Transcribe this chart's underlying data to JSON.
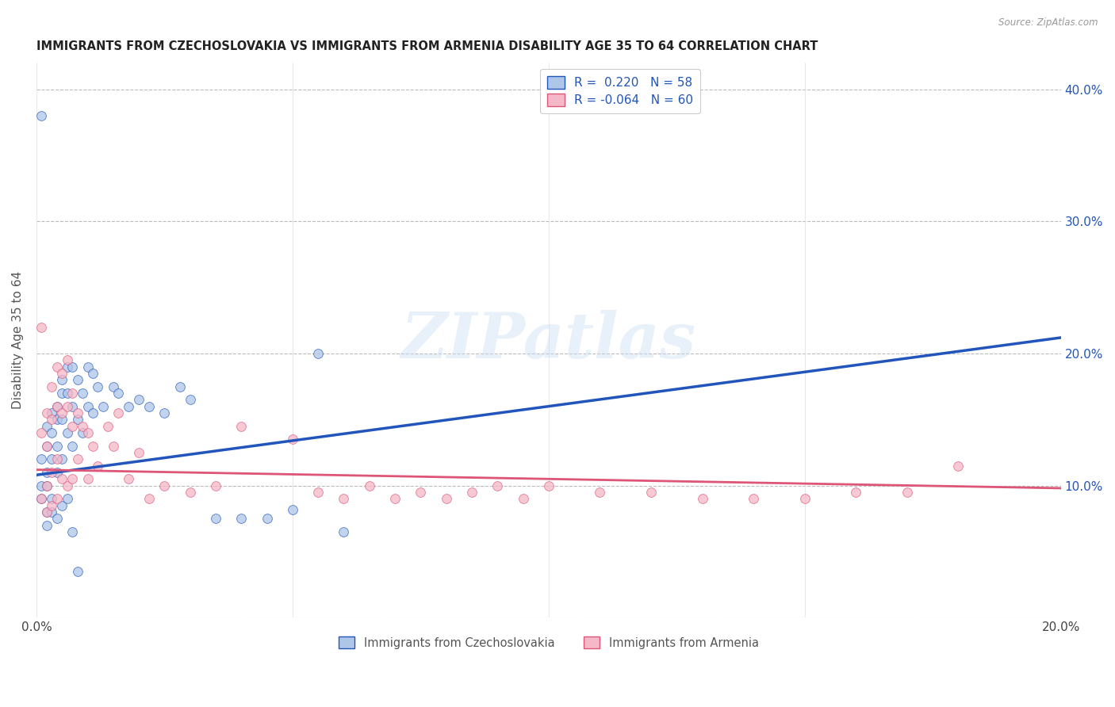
{
  "title": "IMMIGRANTS FROM CZECHOSLOVAKIA VS IMMIGRANTS FROM ARMENIA DISABILITY AGE 35 TO 64 CORRELATION CHART",
  "source": "Source: ZipAtlas.com",
  "ylabel": "Disability Age 35 to 64",
  "xlim": [
    0.0,
    0.2
  ],
  "ylim": [
    0.0,
    0.42
  ],
  "x_tick_positions": [
    0.0,
    0.05,
    0.1,
    0.15,
    0.2
  ],
  "x_tick_labels": [
    "0.0%",
    "",
    "",
    "",
    "20.0%"
  ],
  "y_tick_positions": [
    0.0,
    0.1,
    0.2,
    0.3,
    0.4
  ],
  "y_tick_labels_right": [
    "",
    "10.0%",
    "20.0%",
    "30.0%",
    "40.0%"
  ],
  "watermark": "ZIPatlas",
  "legend_line1": "R =  0.220   N = 58",
  "legend_line2": "R = -0.064   N = 60",
  "color_czech": "#aec6e8",
  "color_armenia": "#f4b8c8",
  "line_color_czech": "#2255bb",
  "line_color_armenia": "#dd5577",
  "marker_size": 72,
  "czech_intercept": 0.108,
  "czech_slope": 0.52,
  "armenia_intercept": 0.112,
  "armenia_slope": -0.07,
  "czech_x": [
    0.001,
    0.001,
    0.001,
    0.002,
    0.002,
    0.002,
    0.002,
    0.002,
    0.003,
    0.003,
    0.003,
    0.003,
    0.004,
    0.004,
    0.004,
    0.004,
    0.005,
    0.005,
    0.005,
    0.005,
    0.006,
    0.006,
    0.006,
    0.007,
    0.007,
    0.007,
    0.008,
    0.008,
    0.009,
    0.009,
    0.01,
    0.01,
    0.011,
    0.011,
    0.012,
    0.013,
    0.015,
    0.016,
    0.018,
    0.02,
    0.022,
    0.025,
    0.028,
    0.03,
    0.035,
    0.04,
    0.045,
    0.05,
    0.055,
    0.06,
    0.001,
    0.002,
    0.003,
    0.004,
    0.005,
    0.006,
    0.007,
    0.008
  ],
  "czech_y": [
    0.12,
    0.1,
    0.09,
    0.145,
    0.13,
    0.11,
    0.1,
    0.08,
    0.155,
    0.14,
    0.12,
    0.09,
    0.16,
    0.15,
    0.13,
    0.11,
    0.18,
    0.17,
    0.15,
    0.12,
    0.19,
    0.17,
    0.14,
    0.19,
    0.16,
    0.13,
    0.18,
    0.15,
    0.17,
    0.14,
    0.19,
    0.16,
    0.185,
    0.155,
    0.175,
    0.16,
    0.175,
    0.17,
    0.16,
    0.165,
    0.16,
    0.155,
    0.175,
    0.165,
    0.075,
    0.075,
    0.075,
    0.082,
    0.2,
    0.065,
    0.38,
    0.07,
    0.08,
    0.075,
    0.085,
    0.09,
    0.065,
    0.035
  ],
  "armenia_x": [
    0.001,
    0.001,
    0.001,
    0.002,
    0.002,
    0.002,
    0.002,
    0.003,
    0.003,
    0.003,
    0.003,
    0.004,
    0.004,
    0.004,
    0.004,
    0.005,
    0.005,
    0.005,
    0.006,
    0.006,
    0.006,
    0.007,
    0.007,
    0.007,
    0.008,
    0.008,
    0.009,
    0.01,
    0.01,
    0.011,
    0.012,
    0.014,
    0.015,
    0.016,
    0.018,
    0.02,
    0.022,
    0.025,
    0.03,
    0.035,
    0.04,
    0.05,
    0.055,
    0.06,
    0.065,
    0.07,
    0.075,
    0.08,
    0.085,
    0.09,
    0.095,
    0.1,
    0.11,
    0.12,
    0.13,
    0.14,
    0.15,
    0.16,
    0.17,
    0.18
  ],
  "armenia_y": [
    0.22,
    0.14,
    0.09,
    0.155,
    0.13,
    0.1,
    0.08,
    0.175,
    0.15,
    0.11,
    0.085,
    0.19,
    0.16,
    0.12,
    0.09,
    0.185,
    0.155,
    0.105,
    0.195,
    0.16,
    0.1,
    0.17,
    0.145,
    0.105,
    0.155,
    0.12,
    0.145,
    0.14,
    0.105,
    0.13,
    0.115,
    0.145,
    0.13,
    0.155,
    0.105,
    0.125,
    0.09,
    0.1,
    0.095,
    0.1,
    0.145,
    0.135,
    0.095,
    0.09,
    0.1,
    0.09,
    0.095,
    0.09,
    0.095,
    0.1,
    0.09,
    0.1,
    0.095,
    0.095,
    0.09,
    0.09,
    0.09,
    0.095,
    0.095,
    0.115
  ]
}
